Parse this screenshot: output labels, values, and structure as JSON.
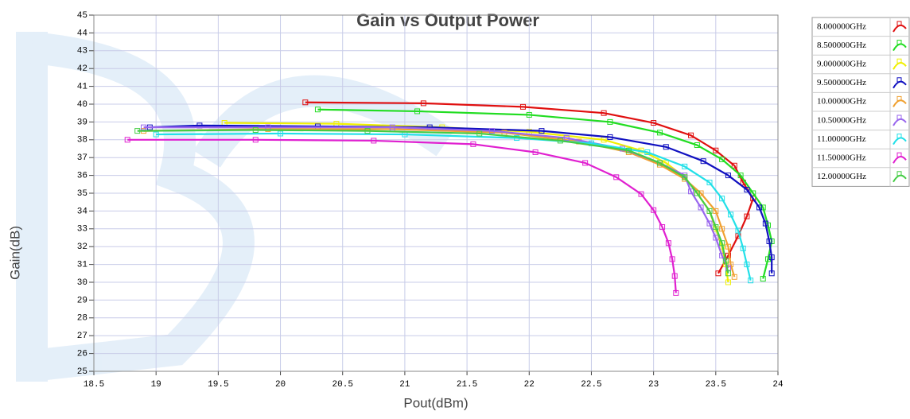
{
  "chart_data": {
    "type": "line",
    "title": "Gain vs Output Power",
    "x_label": "Pout(dBm)",
    "y_label": "Gain(dB)",
    "xlim": [
      18.5,
      24
    ],
    "xticks": [
      18.5,
      19,
      19.5,
      20,
      20.5,
      21,
      21.5,
      22,
      22.5,
      23,
      23.5,
      24
    ],
    "ylim": [
      25,
      45
    ],
    "yticks": [
      25,
      26,
      27,
      28,
      29,
      30,
      31,
      32,
      33,
      34,
      35,
      36,
      37,
      38,
      39,
      40,
      41,
      42,
      43,
      44,
      45
    ],
    "grid": true,
    "legend": "right",
    "series": [
      {
        "name": "8.000000GHz",
        "color": "#e01010",
        "x": [
          20.2,
          21.15,
          21.95,
          22.6,
          23.0,
          23.3,
          23.5,
          23.65,
          23.72,
          23.8,
          23.75,
          23.68,
          23.6,
          23.52
        ],
        "values": [
          40.1,
          40.05,
          39.85,
          39.5,
          38.95,
          38.25,
          37.4,
          36.55,
          35.6,
          34.7,
          33.7,
          32.6,
          31.5,
          30.5
        ]
      },
      {
        "name": "8.500000GHz",
        "color": "#22dd22",
        "x": [
          20.3,
          21.1,
          22.0,
          22.65,
          23.05,
          23.35,
          23.55,
          23.7,
          23.8,
          23.88,
          23.92,
          23.95,
          23.92,
          23.88
        ],
        "values": [
          39.7,
          39.6,
          39.4,
          39.0,
          38.4,
          37.7,
          36.9,
          36.0,
          35.0,
          34.2,
          33.2,
          32.3,
          31.3,
          30.2
        ]
      },
      {
        "name": "9.000000GHz",
        "color": "#f0f000",
        "x": [
          19.55,
          20.45,
          21.3,
          22.0,
          22.6,
          22.9,
          23.1,
          23.25,
          23.35,
          23.45,
          23.5,
          23.55,
          23.58,
          23.6
        ],
        "values": [
          38.95,
          38.9,
          38.7,
          38.45,
          38.0,
          37.4,
          36.7,
          35.9,
          35.0,
          34.0,
          33.0,
          32.0,
          31.0,
          30.0
        ]
      },
      {
        "name": "9.500000GHz",
        "color": "#1010c0",
        "x": [
          18.95,
          19.35,
          20.3,
          21.2,
          22.1,
          22.65,
          23.1,
          23.4,
          23.6,
          23.75,
          23.85,
          23.9,
          23.93,
          23.95,
          23.95
        ],
        "values": [
          38.7,
          38.8,
          38.75,
          38.7,
          38.5,
          38.15,
          37.6,
          36.8,
          36.0,
          35.2,
          34.2,
          33.3,
          32.3,
          31.4,
          30.5
        ]
      },
      {
        "name": "10.00000GHz",
        "color": "#f0a030",
        "x": [
          18.9,
          19.9,
          20.9,
          21.8,
          22.4,
          22.8,
          23.05,
          23.25,
          23.38,
          23.5,
          23.55,
          23.6,
          23.62,
          23.65
        ],
        "values": [
          38.5,
          38.6,
          38.6,
          38.4,
          37.9,
          37.3,
          36.6,
          35.8,
          35.0,
          34.0,
          33.0,
          32.0,
          31.0,
          30.3
        ]
      },
      {
        "name": "10.50000GHz",
        "color": "#9966ee",
        "x": [
          18.9,
          19.9,
          20.9,
          21.7,
          22.3,
          22.75,
          23.05,
          23.25,
          23.3,
          23.38,
          23.45,
          23.5,
          23.55,
          23.6
        ],
        "values": [
          38.7,
          38.7,
          38.7,
          38.5,
          38.1,
          37.5,
          36.7,
          36.0,
          35.1,
          34.2,
          33.3,
          32.5,
          31.5,
          30.8
        ]
      },
      {
        "name": "11.00000GHz",
        "color": "#22e0e8",
        "x": [
          19.0,
          20.0,
          21.0,
          21.9,
          22.5,
          22.95,
          23.25,
          23.45,
          23.55,
          23.62,
          23.68,
          23.72,
          23.75,
          23.78
        ],
        "values": [
          38.3,
          38.35,
          38.3,
          38.1,
          37.8,
          37.3,
          36.5,
          35.6,
          34.7,
          33.8,
          32.9,
          31.9,
          31.0,
          30.1
        ]
      },
      {
        "name": "11.50000GHz",
        "color": "#e020d0",
        "x": [
          18.77,
          19.8,
          20.75,
          21.55,
          22.05,
          22.45,
          22.7,
          22.9,
          23.0,
          23.07,
          23.12,
          23.15,
          23.17,
          23.18
        ],
        "values": [
          38.0,
          38.0,
          37.95,
          37.75,
          37.3,
          36.7,
          35.9,
          34.95,
          34.05,
          33.1,
          32.2,
          31.3,
          30.35,
          29.4
        ]
      },
      {
        "name": "12.00000GHz",
        "color": "#44cc44",
        "x": [
          18.85,
          19.8,
          20.7,
          21.6,
          22.25,
          22.8,
          23.05,
          23.25,
          23.35,
          23.45,
          23.5,
          23.55,
          23.58,
          23.6
        ],
        "values": [
          38.5,
          38.55,
          38.5,
          38.35,
          37.95,
          37.4,
          36.7,
          35.9,
          35.0,
          34.0,
          33.1,
          32.2,
          31.2,
          30.5
        ]
      }
    ]
  }
}
